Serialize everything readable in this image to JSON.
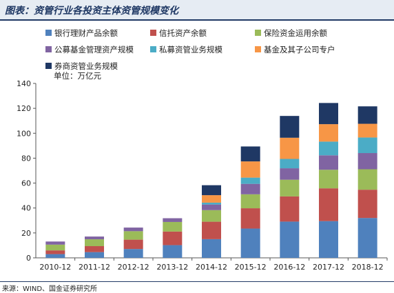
{
  "header": {
    "title": "图表：资管行业各投资主体资管规模变化"
  },
  "footer": {
    "source": "来源：WIND、国金证券研究所"
  },
  "chart_data": {
    "type": "bar",
    "stacked": true,
    "unit_label": "单位：万亿元",
    "categories": [
      "2010-12",
      "2011-12",
      "2012-12",
      "2013-12",
      "2014-12",
      "2015-12",
      "2016-12",
      "2017-12",
      "2018-12"
    ],
    "ylim": [
      0,
      140
    ],
    "yticks": [
      0,
      20,
      40,
      60,
      80,
      100,
      120,
      140
    ],
    "grid": false,
    "legend_position": "top",
    "series": [
      {
        "name": "银行理财产品余额",
        "color": "#4f81bd",
        "values": [
          3,
          4.6,
          7.1,
          10.2,
          15,
          23.5,
          29.1,
          29.5,
          32
        ]
      },
      {
        "name": "信托资产余额",
        "color": "#c0504d",
        "values": [
          3,
          4.8,
          7.5,
          10.9,
          14,
          16.3,
          20.2,
          26.3,
          22.7
        ]
      },
      {
        "name": "保险资金运用余额",
        "color": "#9bbb59",
        "values": [
          4.6,
          5.5,
          6.8,
          7.7,
          9.3,
          11.2,
          13.4,
          14.9,
          16.4
        ]
      },
      {
        "name": "公募基金管理资产规模",
        "color": "#8064a2",
        "values": [
          2.5,
          2.2,
          2.9,
          3,
          4.5,
          8.4,
          9.2,
          11.6,
          13
        ]
      },
      {
        "name": "私募资管业务规模",
        "color": "#4bacc6",
        "values": [
          0,
          0,
          0,
          0,
          1.5,
          5,
          7.5,
          11,
          12.5
        ]
      },
      {
        "name": "基金及其子公司专户",
        "color": "#f79646",
        "values": [
          0,
          0,
          0,
          0,
          6,
          13,
          17,
          14,
          11
        ]
      },
      {
        "name": "券商资管业务规模",
        "color": "#1f3864",
        "values": [
          0,
          0,
          0,
          0,
          8,
          12,
          17.5,
          17,
          14
        ]
      }
    ]
  }
}
